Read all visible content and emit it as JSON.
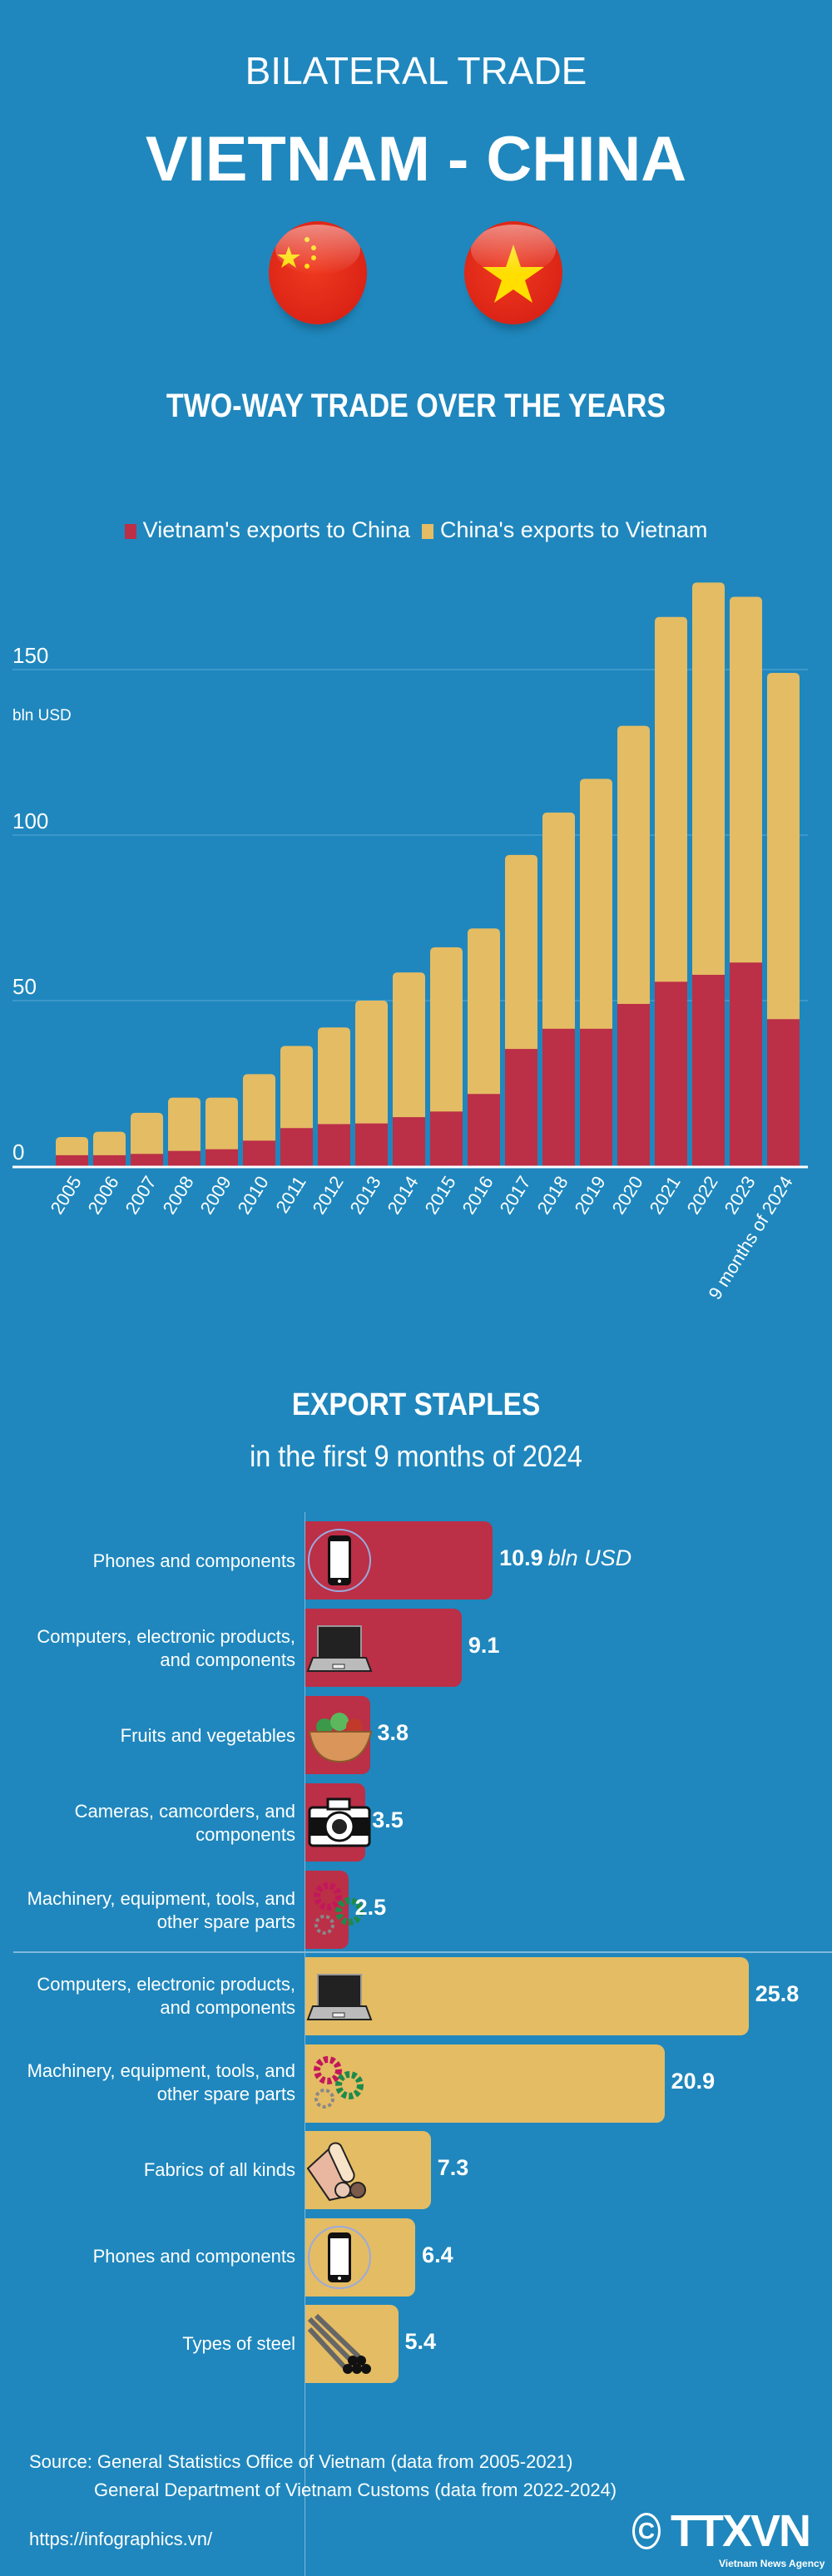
{
  "header": {
    "supertitle": "BILATERAL TRADE",
    "title": "VIETNAM - CHINA",
    "flags": [
      "china-flag-icon",
      "vietnam-flag-icon"
    ]
  },
  "section1": {
    "title": "TWO-WAY TRADE OVER THE YEARS"
  },
  "chart_data": {
    "type": "bar",
    "stacked": true,
    "title": "TWO-WAY TRADE OVER THE YEARS",
    "ylabel": "bln USD",
    "ylim": [
      0,
      180
    ],
    "yticks": [
      "0",
      "50",
      "100",
      "150"
    ],
    "grid": true,
    "legend_position": "top",
    "categories": [
      "2005",
      "2006",
      "2007",
      "2008",
      "2009",
      "2010",
      "2011",
      "2012",
      "2013",
      "2014",
      "2015",
      "2016",
      "2017",
      "2018",
      "2019",
      "2020",
      "2021",
      "2022",
      "2023",
      "9 months of 2024"
    ],
    "series": [
      {
        "name": "Vietnam's exports to China",
        "color": "#bb2f47",
        "values": [
          3.3,
          3.3,
          3.7,
          4.6,
          5.1,
          7.7,
          11.5,
          12.7,
          12.9,
          14.8,
          16.5,
          21.8,
          35.4,
          41.5,
          41.5,
          49.0,
          55.7,
          57.8,
          61.5,
          44.4
        ]
      },
      {
        "name": "China's exports to Vietnam",
        "color": "#e4bc64",
        "values": [
          5.5,
          7.1,
          12.4,
          16.1,
          15.6,
          20.1,
          24.8,
          29.2,
          37.1,
          43.7,
          49.6,
          50.0,
          58.6,
          65.3,
          75.5,
          84.0,
          110.2,
          118.5,
          110.5,
          104.6
        ]
      }
    ]
  },
  "section2": {
    "title": "EXPORT STAPLES",
    "subtitle": "in the first 9 months of 2024",
    "unit": "bln USD",
    "vietnam_exports": [
      {
        "label": "Phones and components",
        "value": 10.9,
        "value_text": "10.9",
        "icon": "phone-icon"
      },
      {
        "label": "Computers, electronic products, and components",
        "value": 9.1,
        "value_text": "9.1",
        "icon": "laptop-icon"
      },
      {
        "label": "Fruits and vegetables",
        "value": 3.8,
        "value_text": "3.8",
        "icon": "vegetable-bowl-icon"
      },
      {
        "label": "Cameras, camcorders, and components",
        "value": 3.5,
        "value_text": "3.5",
        "icon": "camera-icon"
      },
      {
        "label": "Machinery, equipment, tools, and other spare parts",
        "value": 2.5,
        "value_text": "2.5",
        "icon": "gears-icon"
      }
    ],
    "china_exports": [
      {
        "label": "Computers, electronic products, and components",
        "value": 25.8,
        "value_text": "25.8",
        "icon": "laptop-icon"
      },
      {
        "label": "Machinery, equipment, tools, and other spare parts",
        "value": 20.9,
        "value_text": "20.9",
        "icon": "gears-icon"
      },
      {
        "label": "Fabrics of all kinds",
        "value": 7.3,
        "value_text": "7.3",
        "icon": "fabric-rolls-icon"
      },
      {
        "label": "Phones and components",
        "value": 6.4,
        "value_text": "6.4",
        "icon": "phone-icon"
      },
      {
        "label": "Types of steel",
        "value": 5.4,
        "value_text": "5.4",
        "icon": "steel-pipes-icon"
      }
    ]
  },
  "footer": {
    "source_line1": "Source: General Statistics Office of Vietnam (data from 2005-2021)",
    "source_line2": "General Department of Vietnam Customs (data from 2022-2024)",
    "url": "https://infographics.vn/",
    "logo_text": "TTXVN",
    "logo_subtext": "Vietnam News Agency"
  }
}
